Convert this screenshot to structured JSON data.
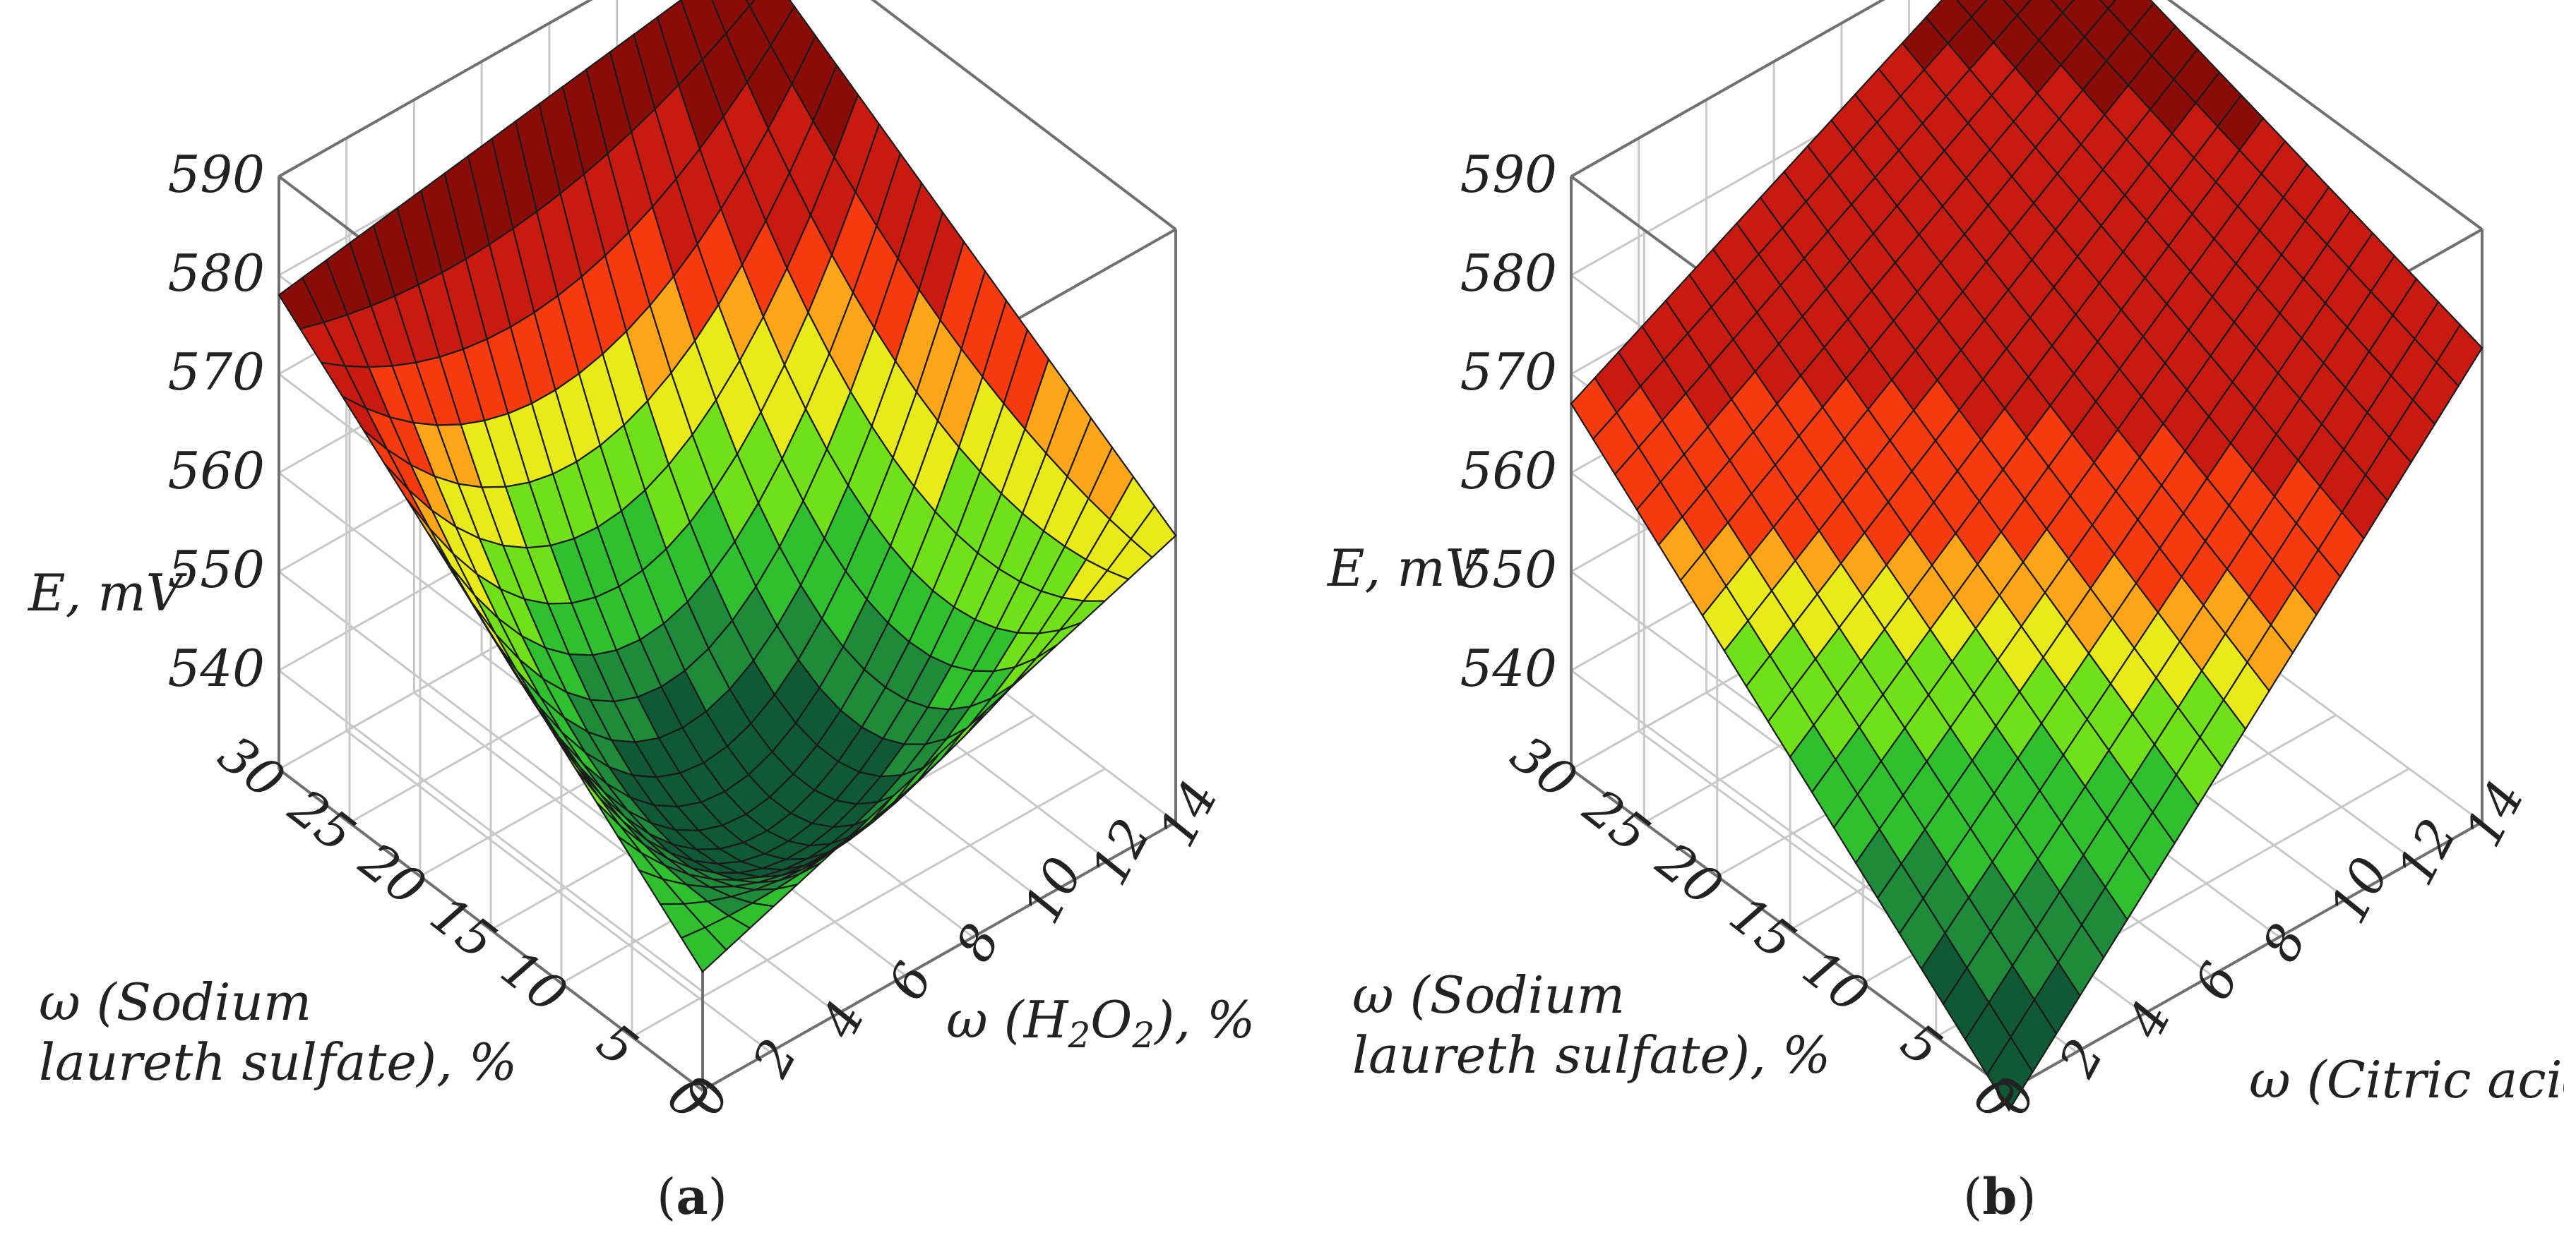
{
  "colors": {
    "scale": [
      "#0f5a34",
      "#1e8a3a",
      "#2fbf2f",
      "#6fe01a",
      "#e8ea1a",
      "#ffa51a",
      "#f53a10",
      "#c81a10",
      "#8a0c08"
    ],
    "grid": "#c8c8c8",
    "mesh": "#1a1a1a"
  },
  "chart_data": [
    {
      "type": "surface",
      "panel_label": "a",
      "zlabel": "E, mV",
      "ylabel_line1": "ω (Sodium",
      "ylabel_line2": "laureth sulfate), %",
      "xlabel_prefix": "ω (H",
      "xlabel_sub1": "2",
      "xlabel_mid": "O",
      "xlabel_sub2": "2",
      "xlabel_suffix": "), %",
      "x_name": "ω (H2O2), %",
      "x_range": [
        0,
        14
      ],
      "x_ticks": [
        "0",
        "2",
        "4",
        "6",
        "8",
        "10",
        "12",
        "14"
      ],
      "y_name": "ω (Sodium laureth sulfate), %",
      "y_range": [
        0,
        30
      ],
      "y_ticks": [
        "0",
        "5",
        "10",
        "15",
        "20",
        "25",
        "30"
      ],
      "z_range": [
        530,
        590
      ],
      "z_ticks": [
        "540",
        "550",
        "560",
        "570",
        "580",
        "590"
      ],
      "corners": {
        "x0_y0": 542,
        "x14_y0": 559,
        "x0_y30": 578,
        "x14_y30": 586
      },
      "minimum": 535,
      "color_breaks": [
        538,
        543,
        549,
        555,
        560,
        564,
        569,
        576
      ]
    },
    {
      "type": "surface",
      "panel_label": "b",
      "zlabel": "E, mV",
      "ylabel_line1": "ω (Sodium",
      "ylabel_line2": "laureth sulfate), %",
      "xlabel_prefix": "ω (Citric acid), %",
      "x_name": "ω (Citric acid), %",
      "x_range": [
        0,
        14
      ],
      "x_ticks": [
        "0",
        "2",
        "4",
        "6",
        "8",
        "10",
        "12",
        "14"
      ],
      "y_name": "ω (Sodium laureth sulfate), %",
      "y_range": [
        0,
        30
      ],
      "y_ticks": [
        "0",
        "5",
        "10",
        "15",
        "20",
        "25",
        "30"
      ],
      "z_range": [
        530,
        590
      ],
      "z_ticks": [
        "540",
        "550",
        "560",
        "570",
        "580",
        "590"
      ],
      "corners": {
        "x0_y0": 528,
        "x14_y0": 578,
        "x0_y30": 567,
        "x14_y30": 592
      },
      "color_breaks": [
        536,
        542,
        549,
        554,
        557,
        560,
        567,
        584
      ]
    }
  ]
}
